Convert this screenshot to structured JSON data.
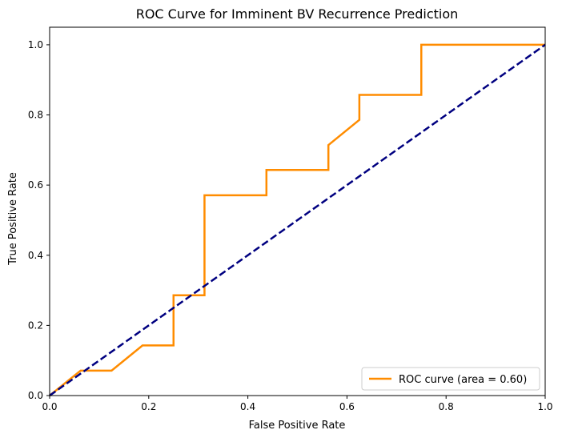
{
  "chart_data": {
    "type": "line",
    "title": "ROC Curve for Imminent BV Recurrence Prediction",
    "xlabel": "False Positive Rate",
    "ylabel": "True Positive Rate",
    "xlim": [
      0.0,
      1.0
    ],
    "ylim": [
      0.0,
      1.05
    ],
    "x_ticks": [
      0.0,
      0.2,
      0.4,
      0.6,
      0.8,
      1.0
    ],
    "x_tick_labels": [
      "0.0",
      "0.2",
      "0.4",
      "0.6",
      "0.8",
      "1.0"
    ],
    "y_ticks": [
      0.0,
      0.2,
      0.4,
      0.6,
      0.8,
      1.0
    ],
    "y_tick_labels": [
      "0.0",
      "0.2",
      "0.4",
      "0.6",
      "0.8",
      "1.0"
    ],
    "grid": false,
    "legend_position": "lower-right",
    "series": [
      {
        "name": "ROC curve (area = 0.60)",
        "color": "#ff8c00",
        "style": "solid",
        "x": [
          0.0,
          0.0625,
          0.125,
          0.1875,
          0.25,
          0.25,
          0.3125,
          0.3125,
          0.4375,
          0.4375,
          0.5625,
          0.5625,
          0.625,
          0.625,
          0.75,
          0.75,
          1.0
        ],
        "y": [
          0.0,
          0.071,
          0.071,
          0.143,
          0.143,
          0.286,
          0.286,
          0.571,
          0.571,
          0.643,
          0.643,
          0.714,
          0.786,
          0.857,
          0.857,
          1.0,
          1.0
        ]
      },
      {
        "color": "#000080",
        "style": "dashed",
        "x": [
          0.0,
          1.0
        ],
        "y": [
          0.0,
          1.0
        ]
      }
    ]
  }
}
